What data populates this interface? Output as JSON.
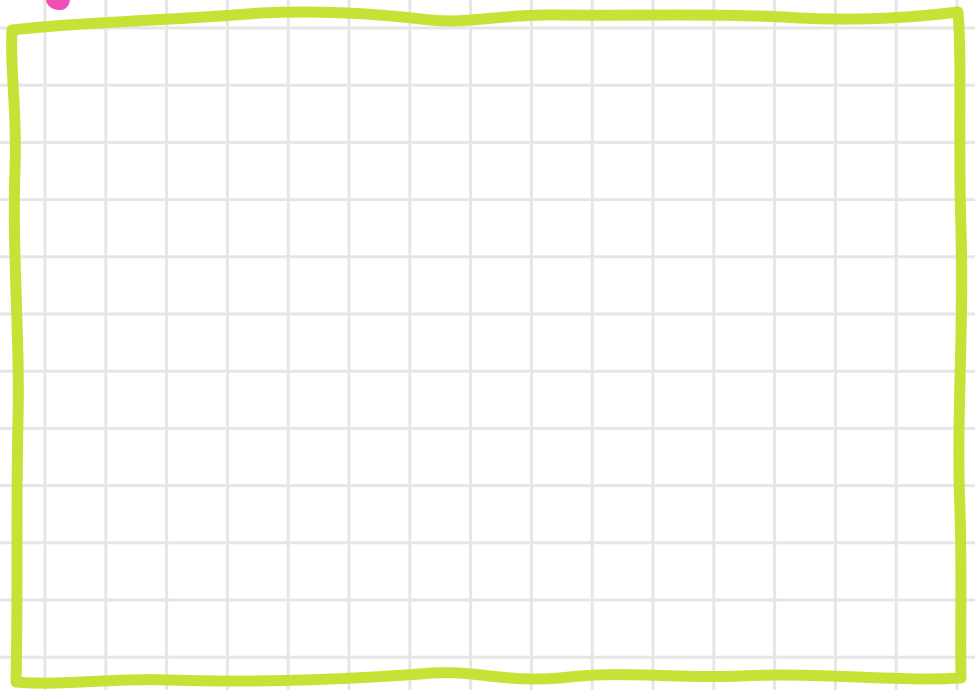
{
  "canvas": {
    "background_color": "#ffffff",
    "grid_color": "#e6e6e6",
    "frame_color": "#c5e336",
    "accent_color": "#f04fb7",
    "grid_visible": true
  },
  "elements": {
    "frame": {
      "kind": "hand-drawn-rectangle"
    },
    "corner_mark": {
      "kind": "partial-shape-icon"
    }
  }
}
